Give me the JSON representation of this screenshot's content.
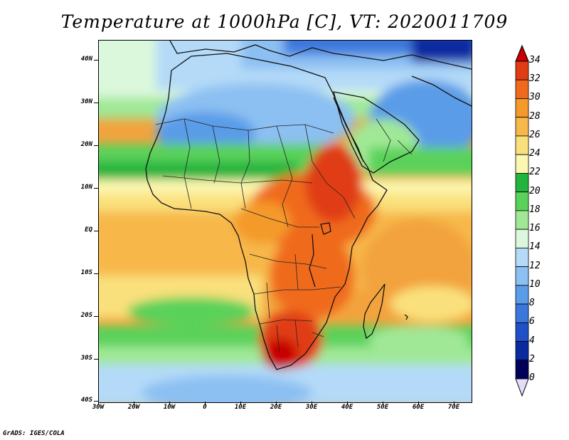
{
  "title": "Temperature at 1000hPa [C], VT: 2020011709",
  "credit": "GrADS: IGES/COLA",
  "axes": {
    "lat_labels": [
      "40N",
      "30N",
      "20N",
      "10N",
      "EQ",
      "10S",
      "20S",
      "30S",
      "40S"
    ],
    "lon_labels": [
      "30W",
      "20W",
      "10W",
      "0",
      "10E",
      "20E",
      "30E",
      "40E",
      "50E",
      "60E",
      "70E"
    ]
  },
  "colorbar": {
    "labels": [
      "34",
      "32",
      "30",
      "28",
      "26",
      "24",
      "22",
      "20",
      "18",
      "16",
      "14",
      "12",
      "10",
      "8",
      "6",
      "4",
      "2",
      "0"
    ],
    "colors": [
      "#c80000",
      "#e03c14",
      "#f06a1e",
      "#f49a2a",
      "#f7b84a",
      "#fae07c",
      "#fcf7b0",
      "#22b43c",
      "#5ad25a",
      "#a0e896",
      "#dcf8dc",
      "#b4daf8",
      "#8cc0f2",
      "#5a9ce8",
      "#3c78dc",
      "#2050c8",
      "#0a2aa0",
      "#00005a"
    ]
  },
  "colors": {
    "ocean_warm": "#f3a33d",
    "ocean_mid": "#f7bc4c",
    "land_hot": "#e23b14",
    "land_very_hot": "#c80000",
    "sahara_cool": "#8cc0f2",
    "north_cold": "#3c78dc",
    "green_band": "#22b43c",
    "pale_green": "#a0e896"
  }
}
